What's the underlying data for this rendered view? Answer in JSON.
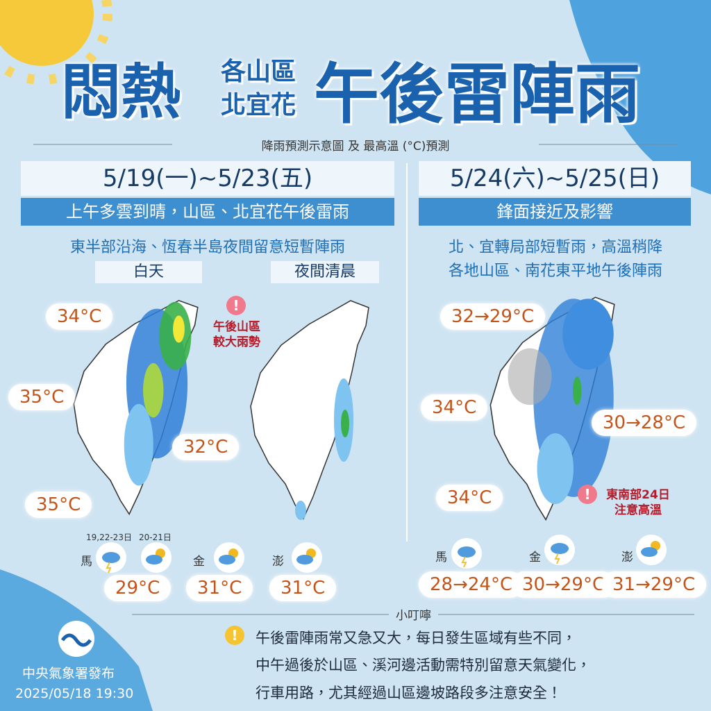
{
  "header": {
    "title_left": "悶熱",
    "region_top": "各山區",
    "region_bottom": "北宜花",
    "title_right": "午後雷陣雨",
    "subtitle": "降雨預測示意圖 及 最高溫 (°C)預測"
  },
  "left_panel": {
    "date": "5/19(一)~5/23(五)",
    "headline": "上午多雲到晴，山區、北宜花午後雷雨",
    "note": "東半部沿海、恆春半島夜間留意短暫陣雨",
    "tabs": [
      "白天",
      "夜間清晨"
    ],
    "temps": [
      "34°C",
      "35°C",
      "32°C",
      "35°C"
    ],
    "alert": [
      "午後山區",
      "較大雨勢"
    ],
    "islands": [
      {
        "name": "馬",
        "dates": [
          "19,22-23日",
          "20-21日"
        ],
        "temp": "29°C"
      },
      {
        "name": "金",
        "temp": "31°C"
      },
      {
        "name": "澎",
        "temp": "31°C"
      }
    ]
  },
  "right_panel": {
    "date": "5/24(六)~5/25(日)",
    "headline": "鋒面接近及影響",
    "notes": [
      "北、宜轉局部短暫雨，高溫稍降",
      "各地山區、南花東平地午後陣雨"
    ],
    "temps": [
      "32→29°C",
      "34°C",
      "30→28°C",
      "34°C"
    ],
    "alert": [
      "東南部24日",
      "注意高溫"
    ],
    "islands": [
      {
        "name": "馬",
        "temp": "28→24°C"
      },
      {
        "name": "金",
        "temp": "30→29°C"
      },
      {
        "name": "澎",
        "temp": "31→29°C"
      }
    ]
  },
  "footer": {
    "heading": "小叮嚀",
    "lines": [
      "午後雷陣雨常又急又大，每日發生區域有些不同，",
      "中午過後於山區、溪河邊活動需特別留意天氣變化，",
      "行車用路，尤其經過山區邊坡路段多注意安全！"
    ],
    "publisher": "中央氣象署發布",
    "time": "2025/05/18 19:30"
  }
}
